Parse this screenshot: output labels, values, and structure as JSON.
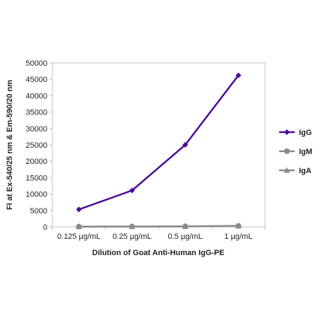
{
  "chart_data": {
    "type": "line",
    "categories": [
      "0.125 µg/mL",
      "0.25 µg/mL",
      "0.5 µg/mL",
      "1 µg/mL"
    ],
    "series": [
      {
        "name": "IgG",
        "values": [
          5300,
          11100,
          25000,
          46200
        ],
        "color": "#4b0a96",
        "marker": "diamond"
      },
      {
        "name": "IgM",
        "values": [
          80,
          100,
          150,
          300
        ],
        "color": "#8c8c8c",
        "marker": "circle"
      },
      {
        "name": "IgA",
        "values": [
          60,
          80,
          120,
          250
        ],
        "color": "#8c8c8c",
        "marker": "triangle"
      }
    ],
    "xlabel": "Dilution of Goat Anti-Human IgG-PE",
    "ylabel": "FI at Ex-540/25 nm & Em-590/20 nm",
    "ylim": [
      0,
      50000
    ],
    "yticks": [
      0,
      5000,
      10000,
      15000,
      20000,
      25000,
      30000,
      35000,
      40000,
      45000,
      50000
    ],
    "grid": false,
    "legend_position": "right"
  }
}
